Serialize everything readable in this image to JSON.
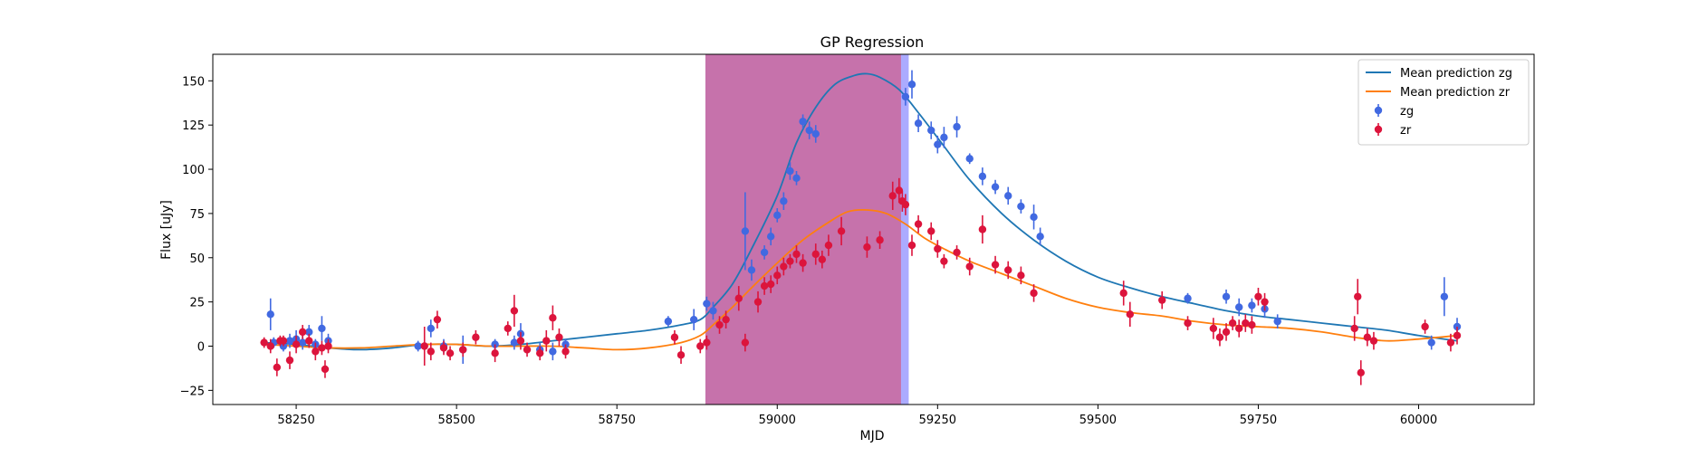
{
  "chart_data": {
    "type": "scatter",
    "title": "GP Regression",
    "xlabel": "MJD",
    "ylabel": "Flux [uJy]",
    "xlim": [
      58120,
      60180
    ],
    "ylim": [
      -33,
      165
    ],
    "x_ticks": [
      58250,
      58500,
      58750,
      59000,
      59250,
      59500,
      59750,
      60000
    ],
    "y_ticks": [
      -25,
      0,
      25,
      50,
      75,
      100,
      125,
      150
    ],
    "grid": false,
    "legend_position": "top-right",
    "shaded_regions": [
      {
        "x0": 58888,
        "x1": 59205,
        "color": "#0000ff",
        "opacity": 0.33
      },
      {
        "x0": 58888,
        "x1": 59193,
        "color": "#ff0000",
        "opacity": 0.33
      }
    ],
    "lines": [
      {
        "name": "Mean prediction zg",
        "color": "#1f77b4",
        "x": [
          58200,
          58250,
          58300,
          58350,
          58400,
          58450,
          58500,
          58550,
          58600,
          58650,
          58700,
          58750,
          58800,
          58850,
          58880,
          58900,
          58930,
          58960,
          59000,
          59030,
          59060,
          59090,
          59120,
          59140,
          59160,
          59190,
          59220,
          59260,
          59300,
          59350,
          59400,
          59450,
          59500,
          59550,
          59600,
          59650,
          59700,
          59750,
          59800,
          59850,
          59900,
          59950,
          60000,
          60060
        ],
        "y": [
          2,
          1,
          -1,
          -2,
          -1,
          1,
          1,
          0,
          1,
          3,
          5,
          7,
          9,
          12,
          15,
          22,
          35,
          55,
          85,
          115,
          135,
          148,
          153,
          154,
          152,
          145,
          132,
          113,
          94,
          75,
          60,
          48,
          39,
          33,
          28,
          24,
          20,
          17,
          15,
          13,
          11,
          9,
          6,
          3
        ]
      },
      {
        "name": "Mean prediction zr",
        "color": "#ff7f0e",
        "x": [
          58200,
          58250,
          58300,
          58350,
          58400,
          58450,
          58500,
          58550,
          58600,
          58650,
          58700,
          58750,
          58800,
          58850,
          58880,
          58900,
          58930,
          58960,
          59000,
          59040,
          59080,
          59110,
          59140,
          59170,
          59200,
          59230,
          59260,
          59300,
          59350,
          59400,
          59450,
          59500,
          59550,
          59600,
          59650,
          59700,
          59750,
          59800,
          59850,
          59900,
          59950,
          60000,
          60060
        ],
        "y": [
          1,
          0,
          -1,
          -1,
          0,
          1,
          1,
          0,
          0,
          0,
          -1,
          -2,
          -1,
          2,
          6,
          12,
          22,
          33,
          47,
          60,
          70,
          76,
          77,
          75,
          69,
          61,
          55,
          48,
          41,
          34,
          27,
          22,
          19,
          17,
          14,
          12,
          11,
          10,
          8,
          5,
          3,
          4,
          6
        ]
      }
    ],
    "series": [
      {
        "name": "zg",
        "color": "#4169e1",
        "x": [
          58210,
          58215,
          58230,
          58240,
          58250,
          58260,
          58270,
          58280,
          58290,
          58300,
          58440,
          58460,
          58480,
          58510,
          58560,
          58590,
          58600,
          58630,
          58650,
          58670,
          58830,
          58870,
          58890,
          58900,
          58950,
          58960,
          58980,
          58990,
          59000,
          59010,
          59020,
          59030,
          59040,
          59050,
          59060,
          59200,
          59210,
          59220,
          59240,
          59250,
          59260,
          59280,
          59300,
          59320,
          59340,
          59360,
          59380,
          59400,
          59410,
          59640,
          59700,
          59720,
          59740,
          59760,
          59780,
          60020,
          60040,
          60060
        ],
        "y": [
          18,
          2,
          0,
          3,
          4,
          2,
          8,
          1,
          10,
          3,
          0,
          10,
          0,
          -2,
          1,
          2,
          7,
          -2,
          -3,
          1,
          14,
          15,
          24,
          20,
          65,
          43,
          53,
          62,
          74,
          82,
          99,
          95,
          127,
          122,
          120,
          141,
          148,
          126,
          122,
          114,
          118,
          124,
          106,
          96,
          90,
          85,
          79,
          73,
          62,
          27,
          28,
          22,
          23,
          21,
          14,
          2,
          28,
          11
        ],
        "yerr": [
          9,
          3,
          3,
          4,
          5,
          4,
          4,
          3,
          7,
          4,
          3,
          5,
          4,
          8,
          3,
          4,
          6,
          4,
          5,
          3,
          3,
          6,
          4,
          5,
          22,
          6,
          4,
          5,
          4,
          5,
          5,
          4,
          4,
          5,
          5,
          5,
          8,
          5,
          5,
          5,
          6,
          6,
          3,
          5,
          4,
          5,
          4,
          7,
          5,
          3,
          4,
          5,
          4,
          5,
          4,
          4,
          11,
          5
        ]
      },
      {
        "name": "zr",
        "color": "#dc143c",
        "x": [
          58200,
          58210,
          58220,
          58225,
          58230,
          58240,
          58250,
          58260,
          58270,
          58280,
          58290,
          58295,
          58300,
          58450,
          58460,
          58470,
          58480,
          58490,
          58510,
          58530,
          58560,
          58580,
          58590,
          58600,
          58610,
          58630,
          58640,
          58650,
          58660,
          58670,
          58840,
          58850,
          58880,
          58890,
          58910,
          58920,
          58940,
          58950,
          58970,
          58980,
          58990,
          59000,
          59010,
          59020,
          59030,
          59040,
          59060,
          59070,
          59080,
          59100,
          59140,
          59160,
          59180,
          59190,
          59195,
          59200,
          59210,
          59220,
          59240,
          59250,
          59260,
          59280,
          59300,
          59320,
          59340,
          59360,
          59380,
          59400,
          59540,
          59550,
          59600,
          59640,
          59680,
          59690,
          59700,
          59710,
          59720,
          59730,
          59740,
          59750,
          59760,
          59900,
          59905,
          59910,
          59920,
          59930,
          60010,
          60050,
          60060
        ],
        "y": [
          2,
          0,
          -12,
          3,
          3,
          -8,
          1,
          8,
          3,
          -3,
          -1,
          -13,
          0,
          0,
          -3,
          15,
          -1,
          -4,
          -2,
          5,
          -4,
          10,
          20,
          3,
          -2,
          -4,
          3,
          16,
          5,
          -3,
          5,
          -5,
          0,
          2,
          12,
          15,
          27,
          2,
          25,
          34,
          35,
          40,
          45,
          48,
          52,
          47,
          52,
          49,
          57,
          65,
          56,
          60,
          85,
          88,
          82,
          80,
          57,
          69,
          65,
          55,
          48,
          53,
          45,
          66,
          46,
          43,
          40,
          30,
          30,
          18,
          26,
          13,
          10,
          5,
          8,
          13,
          10,
          13,
          12,
          28,
          25,
          10,
          28,
          -15,
          5,
          3,
          11,
          2,
          6
        ],
        "yerr": [
          3,
          4,
          5,
          3,
          3,
          5,
          5,
          4,
          4,
          5,
          4,
          5,
          4,
          11,
          5,
          5,
          4,
          4,
          4,
          4,
          5,
          4,
          9,
          5,
          4,
          4,
          6,
          7,
          5,
          4,
          4,
          5,
          4,
          4,
          5,
          5,
          7,
          5,
          6,
          5,
          5,
          5,
          5,
          4,
          5,
          5,
          6,
          5,
          6,
          8,
          6,
          5,
          8,
          7,
          6,
          6,
          6,
          5,
          5,
          5,
          4,
          4,
          5,
          8,
          5,
          5,
          5,
          5,
          7,
          7,
          5,
          4,
          6,
          5,
          5,
          4,
          5,
          5,
          5,
          5,
          5,
          7,
          10,
          7,
          5,
          5,
          4,
          5,
          5
        ]
      }
    ],
    "legend": [
      {
        "label": "Mean prediction zg",
        "kind": "line",
        "color": "#1f77b4"
      },
      {
        "label": "Mean prediction zr",
        "kind": "line",
        "color": "#ff7f0e"
      },
      {
        "label": "zg",
        "kind": "errorbar",
        "color": "#4169e1"
      },
      {
        "label": "zr",
        "kind": "errorbar",
        "color": "#dc143c"
      }
    ]
  }
}
